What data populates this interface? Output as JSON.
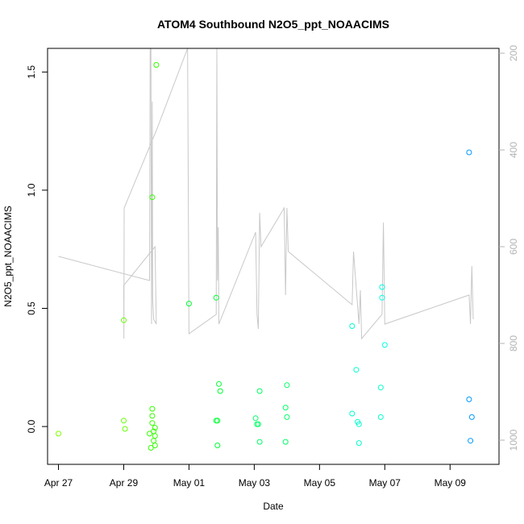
{
  "chart_data": {
    "type": "scatter",
    "title": "ATOM4 Southbound N2O5_ppt_NOAACIMS",
    "xlabel": "Date",
    "ylabel": "N2O5_ppt_NOAACIMS",
    "x_ticks": [
      {
        "date": "2018-04-27",
        "label": "Apr 27"
      },
      {
        "date": "2018-04-29",
        "label": "Apr 29"
      },
      {
        "date": "2018-05-01",
        "label": "May 01"
      },
      {
        "date": "2018-05-03",
        "label": "May 03"
      },
      {
        "date": "2018-05-05",
        "label": "May 05"
      },
      {
        "date": "2018-05-07",
        "label": "May 07"
      },
      {
        "date": "2018-05-09",
        "label": "May 09"
      }
    ],
    "xlim": [
      "2018-04-26T16:00",
      "2018-05-10T12:00"
    ],
    "ylim": [
      -0.16,
      1.6
    ],
    "y_ticks": [
      "0.0",
      "0.5",
      "1.0",
      "1.5"
    ],
    "y2_ticks": [
      "200",
      "400",
      "600",
      "800",
      "1000"
    ],
    "y2lim": [
      1050,
      190
    ],
    "points": [
      {
        "t": "2018-04-27T00:00",
        "y": -0.03,
        "color": "#7fff00"
      },
      {
        "t": "2018-04-29T00:00",
        "y": 0.45,
        "color": "#66ff00"
      },
      {
        "t": "2018-04-29T00:00",
        "y": 0.025,
        "color": "#66ff00"
      },
      {
        "t": "2018-04-29T01:00",
        "y": -0.01,
        "color": "#66ff00"
      },
      {
        "t": "2018-04-29T19:00",
        "y": -0.03,
        "color": "#33ff00"
      },
      {
        "t": "2018-04-29T20:00",
        "y": -0.09,
        "color": "#33ff00"
      },
      {
        "t": "2018-04-29T21:00",
        "y": 0.97,
        "color": "#33ff00"
      },
      {
        "t": "2018-04-29T21:00",
        "y": 0.075,
        "color": "#33ff00"
      },
      {
        "t": "2018-04-29T21:00",
        "y": 0.045,
        "color": "#33ff00"
      },
      {
        "t": "2018-04-29T21:00",
        "y": 0.015,
        "color": "#33ff00"
      },
      {
        "t": "2018-04-29T22:00",
        "y": -0.02,
        "color": "#33ff00"
      },
      {
        "t": "2018-04-29T22:00",
        "y": -0.06,
        "color": "#33ff00"
      },
      {
        "t": "2018-04-29T23:00",
        "y": -0.005,
        "color": "#33ff00"
      },
      {
        "t": "2018-04-29T23:00",
        "y": -0.04,
        "color": "#33ff00"
      },
      {
        "t": "2018-04-29T23:00",
        "y": -0.08,
        "color": "#33ff00"
      },
      {
        "t": "2018-04-30T00:00",
        "y": 1.53,
        "color": "#33ff00"
      },
      {
        "t": "2018-05-01T00:00",
        "y": 0.52,
        "color": "#00ff33"
      },
      {
        "t": "2018-05-01T20:00",
        "y": 0.545,
        "color": "#00ff33"
      },
      {
        "t": "2018-05-01T20:00",
        "y": 0.025,
        "color": "#00ff33"
      },
      {
        "t": "2018-05-01T21:00",
        "y": 0.025,
        "color": "#00ff33"
      },
      {
        "t": "2018-05-01T21:00",
        "y": -0.08,
        "color": "#00ff33"
      },
      {
        "t": "2018-05-01T22:00",
        "y": 0.18,
        "color": "#00ff33"
      },
      {
        "t": "2018-05-01T23:00",
        "y": 0.15,
        "color": "#00ff33"
      },
      {
        "t": "2018-05-03T01:00",
        "y": 0.035,
        "color": "#00ff66"
      },
      {
        "t": "2018-05-03T02:00",
        "y": 0.01,
        "color": "#00ff66"
      },
      {
        "t": "2018-05-03T03:00",
        "y": 0.01,
        "color": "#00ff66"
      },
      {
        "t": "2018-05-03T04:00",
        "y": 0.15,
        "color": "#00ff66"
      },
      {
        "t": "2018-05-03T04:00",
        "y": -0.065,
        "color": "#00ff66"
      },
      {
        "t": "2018-05-03T23:00",
        "y": 0.08,
        "color": "#00ff66"
      },
      {
        "t": "2018-05-03T23:00",
        "y": -0.065,
        "color": "#00ff66"
      },
      {
        "t": "2018-05-04T00:00",
        "y": 0.175,
        "color": "#00ff66"
      },
      {
        "t": "2018-05-04T00:00",
        "y": 0.04,
        "color": "#00ff66"
      },
      {
        "t": "2018-05-06T00:00",
        "y": 0.425,
        "color": "#00ffcc"
      },
      {
        "t": "2018-05-06T00:00",
        "y": 0.055,
        "color": "#00ffcc"
      },
      {
        "t": "2018-05-06T03:00",
        "y": 0.24,
        "color": "#00ffcc"
      },
      {
        "t": "2018-05-06T04:00",
        "y": 0.02,
        "color": "#00ffcc"
      },
      {
        "t": "2018-05-06T05:00",
        "y": 0.01,
        "color": "#00ffcc"
      },
      {
        "t": "2018-05-06T05:00",
        "y": -0.07,
        "color": "#00ffcc"
      },
      {
        "t": "2018-05-06T21:00",
        "y": 0.165,
        "color": "#00ffcc"
      },
      {
        "t": "2018-05-06T21:00",
        "y": 0.04,
        "color": "#00ffcc"
      },
      {
        "t": "2018-05-06T22:00",
        "y": 0.59,
        "color": "#00ffe6"
      },
      {
        "t": "2018-05-06T22:00",
        "y": 0.545,
        "color": "#00ffe6"
      },
      {
        "t": "2018-05-07T00:00",
        "y": 0.345,
        "color": "#00ffe6"
      },
      {
        "t": "2018-05-09T14:00",
        "y": 1.16,
        "color": "#0099ff"
      },
      {
        "t": "2018-05-09T14:00",
        "y": 0.115,
        "color": "#0099ff"
      },
      {
        "t": "2018-05-09T15:00",
        "y": -0.06,
        "color": "#0099ff"
      },
      {
        "t": "2018-05-09T16:00",
        "y": 0.04,
        "color": "#0099ff"
      }
    ],
    "altitude_line": [
      [
        "2018-04-27T00:00",
        620
      ],
      [
        "2018-04-29T19:00",
        670
      ],
      [
        "2018-04-29T19:30",
        190
      ],
      [
        "2018-04-29T20:00",
        190
      ],
      [
        "2018-04-29T20:30",
        760
      ],
      [
        "2018-04-29T21:00",
        300
      ],
      [
        "2018-04-29T21:20",
        710
      ],
      [
        "2018-04-29T22:00",
        750
      ],
      [
        "2018-04-30T00:00",
        760
      ],
      [
        "2018-04-29T23:00",
        600
      ],
      [
        "2018-04-29T00:00",
        680
      ],
      [
        "2018-04-29T00:10",
        790
      ],
      [
        "2018-04-29T00:20",
        520
      ],
      [
        "2018-04-30T00:00",
        360
      ],
      [
        "2018-04-30T23:00",
        190
      ],
      [
        "2018-05-01T00:00",
        780
      ],
      [
        "2018-05-01T20:00",
        740
      ],
      [
        "2018-05-01T20:30",
        190
      ],
      [
        "2018-05-01T21:00",
        670
      ],
      [
        "2018-05-01T21:30",
        560
      ],
      [
        "2018-05-01T22:00",
        760
      ],
      [
        "2018-05-03T01:00",
        570
      ],
      [
        "2018-05-03T02:00",
        740
      ],
      [
        "2018-05-03T03:00",
        770
      ],
      [
        "2018-05-03T04:00",
        530
      ],
      [
        "2018-05-03T05:00",
        600
      ],
      [
        "2018-05-03T22:00",
        520
      ],
      [
        "2018-05-03T23:00",
        700
      ],
      [
        "2018-05-04T00:00",
        520
      ],
      [
        "2018-05-04T01:00",
        610
      ],
      [
        "2018-05-06T00:00",
        720
      ],
      [
        "2018-05-06T01:00",
        610
      ],
      [
        "2018-05-06T05:00",
        760
      ],
      [
        "2018-05-06T06:00",
        690
      ],
      [
        "2018-05-06T07:00",
        790
      ],
      [
        "2018-05-06T22:00",
        740
      ],
      [
        "2018-05-06T23:00",
        550
      ],
      [
        "2018-05-07T00:00",
        760
      ],
      [
        "2018-05-09T14:00",
        700
      ],
      [
        "2018-05-09T15:00",
        760
      ],
      [
        "2018-05-09T16:00",
        640
      ],
      [
        "2018-05-09T17:00",
        750
      ]
    ]
  }
}
